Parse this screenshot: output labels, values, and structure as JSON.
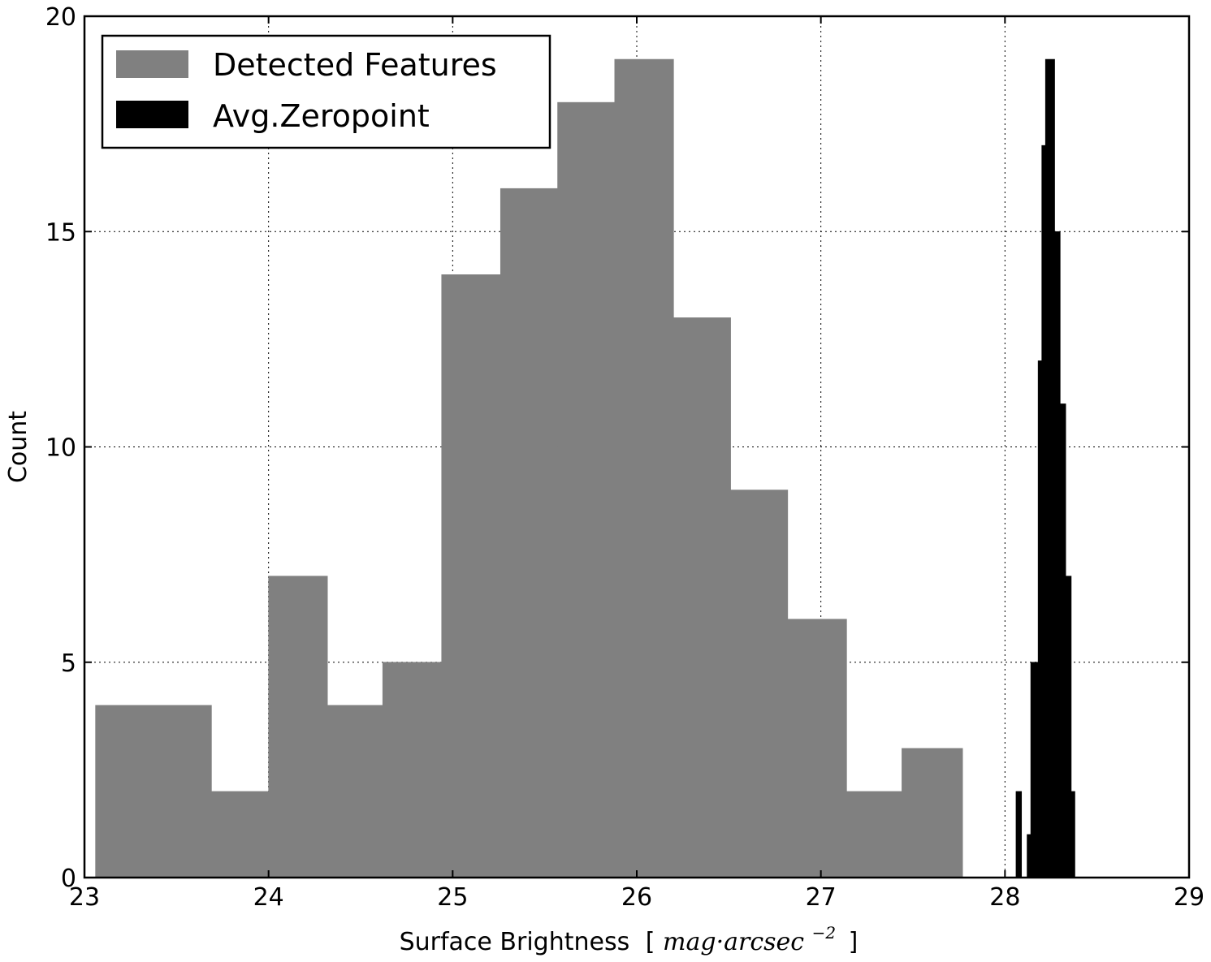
{
  "chart_data": {
    "type": "bar",
    "xlabel": "Surface Brightness",
    "xlabel_unit": {
      "open": "[",
      "math": "mag·arcsec",
      "exponent": "−2",
      "close": "]"
    },
    "ylabel": "Count",
    "xlim": [
      23,
      29
    ],
    "ylim": [
      0,
      20
    ],
    "x_ticks": [
      23,
      24,
      25,
      26,
      27,
      28,
      29
    ],
    "y_ticks": [
      0,
      5,
      10,
      15,
      20
    ],
    "grid": true,
    "legend_position": "top-left",
    "series": [
      {
        "name": "Detected Features",
        "color": "#808080",
        "bins": [
          {
            "x0": 23.06,
            "x1": 23.69,
            "count": 4
          },
          {
            "x0": 23.69,
            "x1": 24.0,
            "count": 2
          },
          {
            "x0": 24.0,
            "x1": 24.32,
            "count": 7
          },
          {
            "x0": 24.32,
            "x1": 24.62,
            "count": 4
          },
          {
            "x0": 24.62,
            "x1": 24.94,
            "count": 5
          },
          {
            "x0": 24.94,
            "x1": 25.26,
            "count": 14
          },
          {
            "x0": 25.26,
            "x1": 25.57,
            "count": 16
          },
          {
            "x0": 25.57,
            "x1": 25.88,
            "count": 18
          },
          {
            "x0": 25.88,
            "x1": 26.2,
            "count": 19
          },
          {
            "x0": 26.2,
            "x1": 26.51,
            "count": 13
          },
          {
            "x0": 26.51,
            "x1": 26.82,
            "count": 9
          },
          {
            "x0": 26.82,
            "x1": 27.14,
            "count": 6
          },
          {
            "x0": 27.14,
            "x1": 27.44,
            "count": 2
          },
          {
            "x0": 27.44,
            "x1": 27.77,
            "count": 3
          }
        ]
      },
      {
        "name": "Avg.Zeropoint",
        "color": "#000000",
        "bins": [
          {
            "x0": 28.06,
            "x1": 28.09,
            "count": 2
          },
          {
            "x0": 28.09,
            "x1": 28.12,
            "count": 0
          },
          {
            "x0": 28.12,
            "x1": 28.14,
            "count": 1
          },
          {
            "x0": 28.14,
            "x1": 28.18,
            "count": 5
          },
          {
            "x0": 28.18,
            "x1": 28.2,
            "count": 12
          },
          {
            "x0": 28.2,
            "x1": 28.22,
            "count": 17
          },
          {
            "x0": 28.22,
            "x1": 28.27,
            "count": 19
          },
          {
            "x0": 28.27,
            "x1": 28.3,
            "count": 15
          },
          {
            "x0": 28.3,
            "x1": 28.33,
            "count": 11
          },
          {
            "x0": 28.33,
            "x1": 28.36,
            "count": 7
          },
          {
            "x0": 28.36,
            "x1": 28.38,
            "count": 2
          }
        ]
      }
    ]
  }
}
